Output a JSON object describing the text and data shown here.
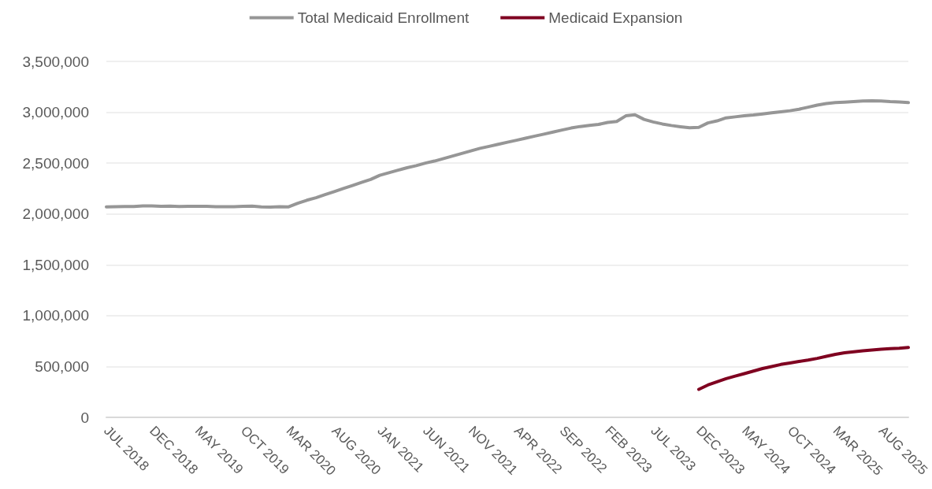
{
  "chart_data": {
    "type": "line",
    "categories": [
      "JUL 2018",
      null,
      null,
      null,
      null,
      "DEC 2018",
      null,
      null,
      null,
      null,
      "MAY 2019",
      null,
      null,
      null,
      null,
      "OCT 2019",
      null,
      null,
      null,
      null,
      "MAR 2020",
      null,
      null,
      null,
      null,
      "AUG 2020",
      null,
      null,
      null,
      null,
      "JAN 2021",
      null,
      null,
      null,
      null,
      "JUN 2021",
      null,
      null,
      null,
      null,
      "NOV 2021",
      null,
      null,
      null,
      null,
      "APR 2022",
      null,
      null,
      null,
      null,
      "SEP 2022",
      null,
      null,
      null,
      null,
      "FEB 2023",
      null,
      null,
      null,
      null,
      "JUL 2023",
      null,
      null,
      null,
      null,
      "DEC 2023",
      null,
      null,
      null,
      null,
      "MAY 2024",
      null,
      null,
      null,
      null,
      "OCT 2024",
      null,
      null,
      null,
      null,
      "MAR 2025",
      null,
      null,
      null,
      null,
      "AUG 2025",
      null,
      null,
      null
    ],
    "series": [
      {
        "name": "Total Medicaid Enrollment",
        "color": "#969696",
        "values": [
          2070000,
          2072000,
          2073000,
          2073000,
          2080000,
          2080000,
          2075000,
          2078000,
          2074000,
          2076000,
          2075000,
          2075000,
          2072000,
          2072000,
          2072000,
          2075000,
          2078000,
          2070000,
          2068000,
          2072000,
          2070000,
          2105000,
          2135000,
          2160000,
          2190000,
          2220000,
          2250000,
          2280000,
          2310000,
          2340000,
          2380000,
          2405000,
          2430000,
          2455000,
          2475000,
          2500000,
          2520000,
          2545000,
          2570000,
          2595000,
          2620000,
          2645000,
          2665000,
          2685000,
          2705000,
          2725000,
          2745000,
          2765000,
          2785000,
          2805000,
          2825000,
          2845000,
          2860000,
          2870000,
          2880000,
          2900000,
          2910000,
          2965000,
          2975000,
          2930000,
          2905000,
          2885000,
          2870000,
          2858000,
          2848000,
          2852000,
          2895000,
          2915000,
          2945000,
          2955000,
          2965000,
          2973000,
          2983000,
          2995000,
          3005000,
          3015000,
          3030000,
          3050000,
          3070000,
          3085000,
          3095000,
          3100000,
          3105000,
          3110000,
          3113000,
          3110000,
          3105000,
          3102000,
          3095000
        ]
      },
      {
        "name": "Medicaid Expansion",
        "color": "#7f0020",
        "values": [
          null,
          null,
          null,
          null,
          null,
          null,
          null,
          null,
          null,
          null,
          null,
          null,
          null,
          null,
          null,
          null,
          null,
          null,
          null,
          null,
          null,
          null,
          null,
          null,
          null,
          null,
          null,
          null,
          null,
          null,
          null,
          null,
          null,
          null,
          null,
          null,
          null,
          null,
          null,
          null,
          null,
          null,
          null,
          null,
          null,
          null,
          null,
          null,
          null,
          null,
          null,
          null,
          null,
          null,
          null,
          null,
          null,
          null,
          null,
          null,
          null,
          null,
          null,
          null,
          null,
          275000,
          318000,
          350000,
          380000,
          405000,
          430000,
          455000,
          480000,
          500000,
          520000,
          535000,
          550000,
          563000,
          580000,
          600000,
          620000,
          635000,
          645000,
          655000,
          662000,
          670000,
          675000,
          680000,
          688000
        ]
      }
    ],
    "ylim": [
      0,
      3500000
    ],
    "yticks": [
      0,
      {
        "value": 500000,
        "label": "500,000"
      },
      {
        "value": 1000000,
        "label": "1,000,000"
      },
      {
        "value": 1500000,
        "label": "1,500,000"
      },
      {
        "value": 2000000,
        "label": "2,000,000"
      },
      {
        "value": 2500000,
        "label": "2,500,000"
      },
      {
        "value": 3000000,
        "label": "3,000,000"
      },
      {
        "value": 3500000,
        "label": "3,500,000"
      }
    ],
    "grid": "y",
    "legend": "top",
    "marker": "none",
    "line_style": "solid"
  }
}
